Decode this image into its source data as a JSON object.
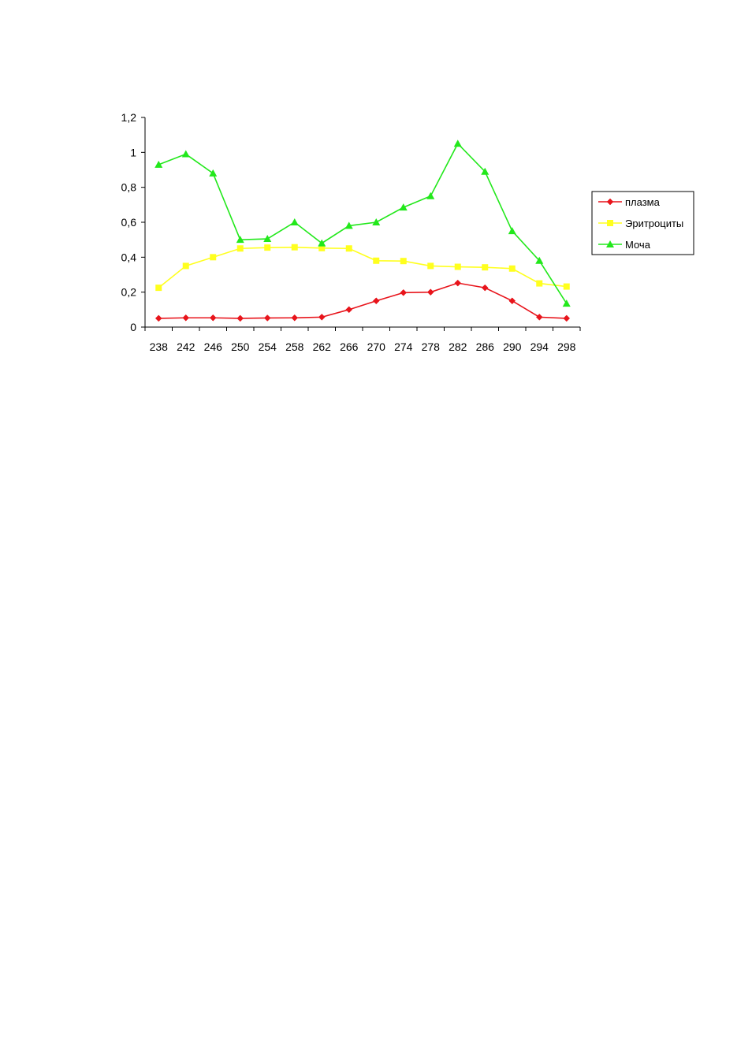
{
  "chart_data": {
    "type": "line",
    "title": "",
    "xlabel": "",
    "ylabel": "",
    "categories": [
      "238",
      "242",
      "246",
      "250",
      "254",
      "258",
      "262",
      "266",
      "270",
      "274",
      "278",
      "282",
      "286",
      "290",
      "294",
      "298"
    ],
    "ylim": [
      0,
      1.2
    ],
    "yticks": [
      0,
      0.2,
      0.4,
      0.6,
      0.8,
      1,
      1.2
    ],
    "ytick_labels": [
      "0",
      "0,2",
      "0,4",
      "0,6",
      "0,8",
      "1",
      "1,2"
    ],
    "grid": false,
    "legend_position": "right",
    "series": [
      {
        "name": "плазма",
        "color": "#e8141b",
        "marker": "diamond",
        "values": [
          0.05,
          0.053,
          0.053,
          0.05,
          0.052,
          0.053,
          0.057,
          0.1,
          0.15,
          0.197,
          0.2,
          0.252,
          0.225,
          0.15,
          0.057,
          0.05
        ]
      },
      {
        "name": "Эритроциты",
        "color": "#ffff1e",
        "marker": "square",
        "values": [
          0.225,
          0.35,
          0.4,
          0.45,
          0.455,
          0.457,
          0.452,
          0.45,
          0.38,
          0.378,
          0.35,
          0.345,
          0.342,
          0.335,
          0.25,
          0.232
        ]
      },
      {
        "name": "Моча",
        "color": "#22e81b",
        "marker": "triangle",
        "values": [
          0.93,
          0.99,
          0.88,
          0.5,
          0.505,
          0.6,
          0.48,
          0.58,
          0.6,
          0.685,
          0.75,
          1.05,
          0.89,
          0.55,
          0.38,
          0.135
        ]
      }
    ]
  }
}
